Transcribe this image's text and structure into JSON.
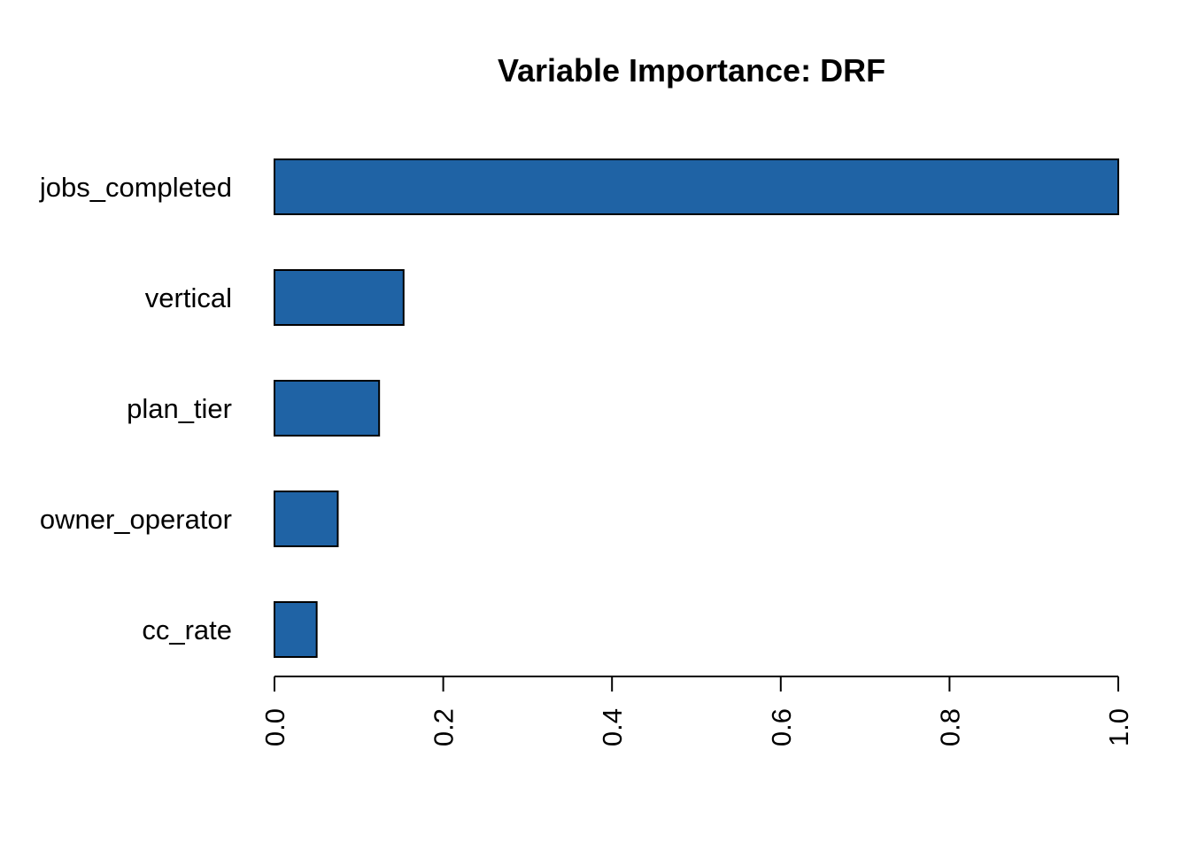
{
  "chart_data": {
    "type": "bar",
    "orientation": "horizontal",
    "title": "Variable Importance: DRF",
    "xlabel": "",
    "ylabel": "",
    "categories": [
      "jobs_completed",
      "vertical",
      "plan_tier",
      "owner_operator",
      "cc_rate"
    ],
    "values": [
      1.0,
      0.153,
      0.124,
      0.075,
      0.05
    ],
    "xlim": [
      0,
      1
    ],
    "xticks": [
      "0.0",
      "0.2",
      "0.4",
      "0.6",
      "0.8",
      "1.0"
    ],
    "tick_label_rotation": "vertical",
    "grid": false,
    "legend": "none",
    "bar_color": "#1f63a5"
  }
}
